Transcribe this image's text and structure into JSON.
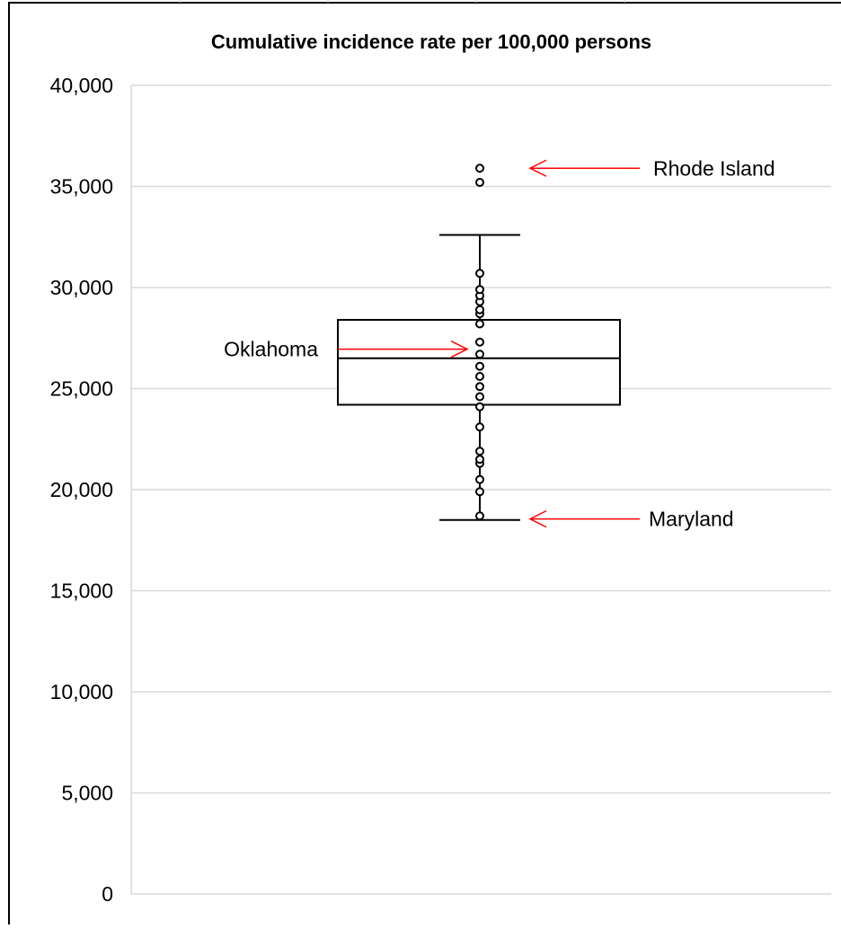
{
  "chart_data": {
    "type": "box",
    "title": "Cumulative incidence rate per 100,000 persons",
    "xlabel": "",
    "ylabel": "",
    "ylim": [
      0,
      40000
    ],
    "grid": true,
    "yticks": [
      {
        "value": 0,
        "label": "0"
      },
      {
        "value": 5000,
        "label": "5,000"
      },
      {
        "value": 10000,
        "label": "10,000"
      },
      {
        "value": 15000,
        "label": "15,000"
      },
      {
        "value": 20000,
        "label": "20,000"
      },
      {
        "value": 25000,
        "label": "25,000"
      },
      {
        "value": 30000,
        "label": "30,000"
      },
      {
        "value": 35000,
        "label": "35,000"
      },
      {
        "value": 40000,
        "label": "40,000"
      }
    ],
    "box": {
      "whisker_low": 18500,
      "q1": 24200,
      "median": 26500,
      "q3": 28400,
      "whisker_high": 32600
    },
    "points": [
      18700,
      19900,
      20500,
      21300,
      21500,
      21900,
      23100,
      24100,
      24600,
      25100,
      25600,
      26100,
      26700,
      27300,
      28200,
      28700,
      28900,
      29300,
      29600,
      29900,
      30700
    ],
    "outliers": [
      35200,
      35900
    ],
    "annotations": [
      {
        "label": "Rhode Island",
        "value": 35900,
        "side": "right"
      },
      {
        "label": "Oklahoma",
        "value": 26950,
        "side": "left"
      },
      {
        "label": "Maryland",
        "value": 18550,
        "side": "right"
      }
    ]
  }
}
